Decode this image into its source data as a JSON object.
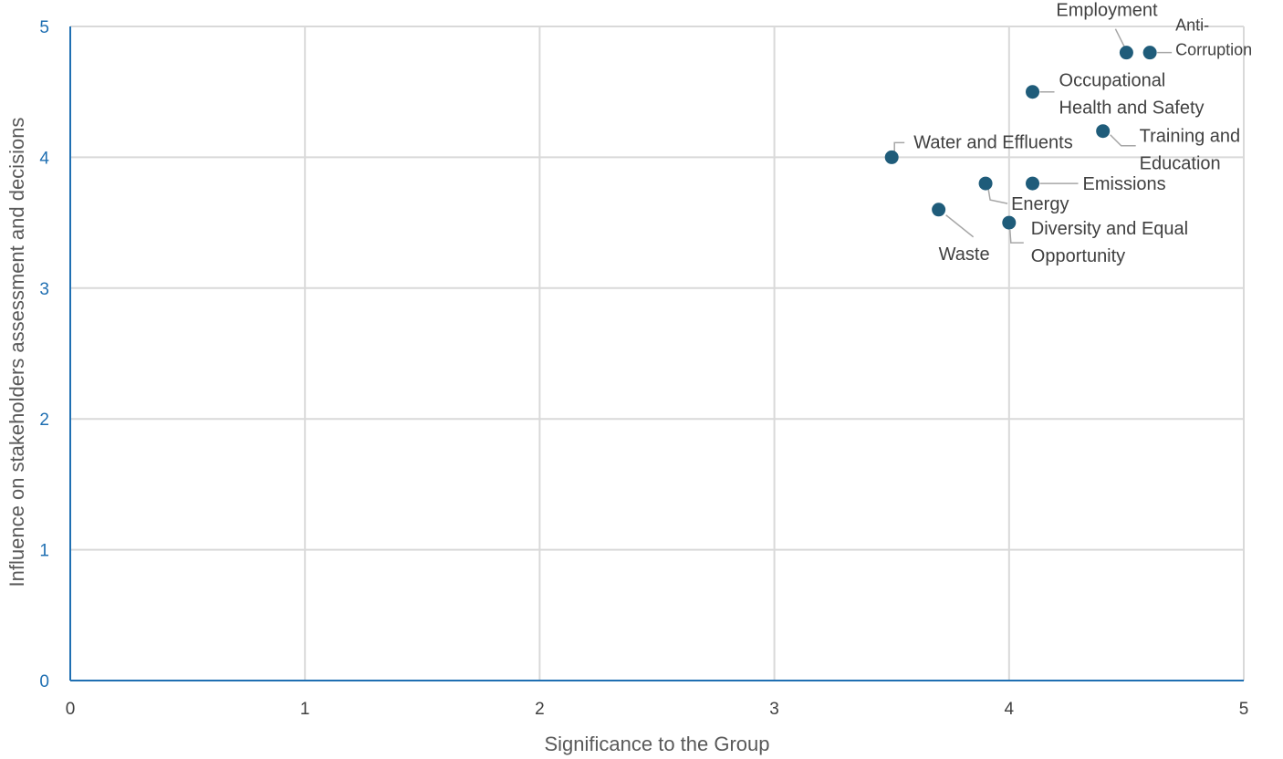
{
  "chart_data": {
    "type": "scatter",
    "title": "",
    "xlabel": "Significance to the Group",
    "ylabel": "Influence on stakeholders assessment and decisions",
    "xlim": [
      0,
      5
    ],
    "ylim": [
      0,
      5
    ],
    "x_ticks": [
      "0",
      "1",
      "2",
      "3",
      "4",
      "5"
    ],
    "y_ticks": [
      "0",
      "1",
      "2",
      "3",
      "4",
      "5"
    ],
    "grid": true,
    "legend": "none",
    "points": [
      {
        "label": "Employment",
        "lines": [
          "Employment"
        ],
        "x": 4.5,
        "y": 4.8
      },
      {
        "label": "Anti-Corruption",
        "lines": [
          "Anti-",
          "Corruption"
        ],
        "x": 4.6,
        "y": 4.8
      },
      {
        "label": "Occupational Health and Safety",
        "lines": [
          "Occupational",
          "Health and Safety"
        ],
        "x": 4.1,
        "y": 4.5
      },
      {
        "label": "Training and Education",
        "lines": [
          "Training and",
          "Education"
        ],
        "x": 4.4,
        "y": 4.2
      },
      {
        "label": "Water and Effluents",
        "lines": [
          "Water and Effluents"
        ],
        "x": 3.5,
        "y": 4.0
      },
      {
        "label": "Emissions",
        "lines": [
          "Emissions"
        ],
        "x": 4.1,
        "y": 3.8
      },
      {
        "label": "Energy",
        "lines": [
          "Energy"
        ],
        "x": 3.9,
        "y": 3.8
      },
      {
        "label": "Waste",
        "lines": [
          "Waste"
        ],
        "x": 3.7,
        "y": 3.6
      },
      {
        "label": "Diversity and Equal Opportunity",
        "lines": [
          "Diversity and Equal",
          "Opportunity"
        ],
        "x": 4.0,
        "y": 3.5
      }
    ],
    "colors": {
      "marker": "#1F5C7A",
      "axis": "#1F6FB2",
      "axis_tick_text": "#1F6FB2",
      "grid": "#D9D9D9",
      "text": "#404040",
      "leader": "#A6A6A6"
    }
  }
}
